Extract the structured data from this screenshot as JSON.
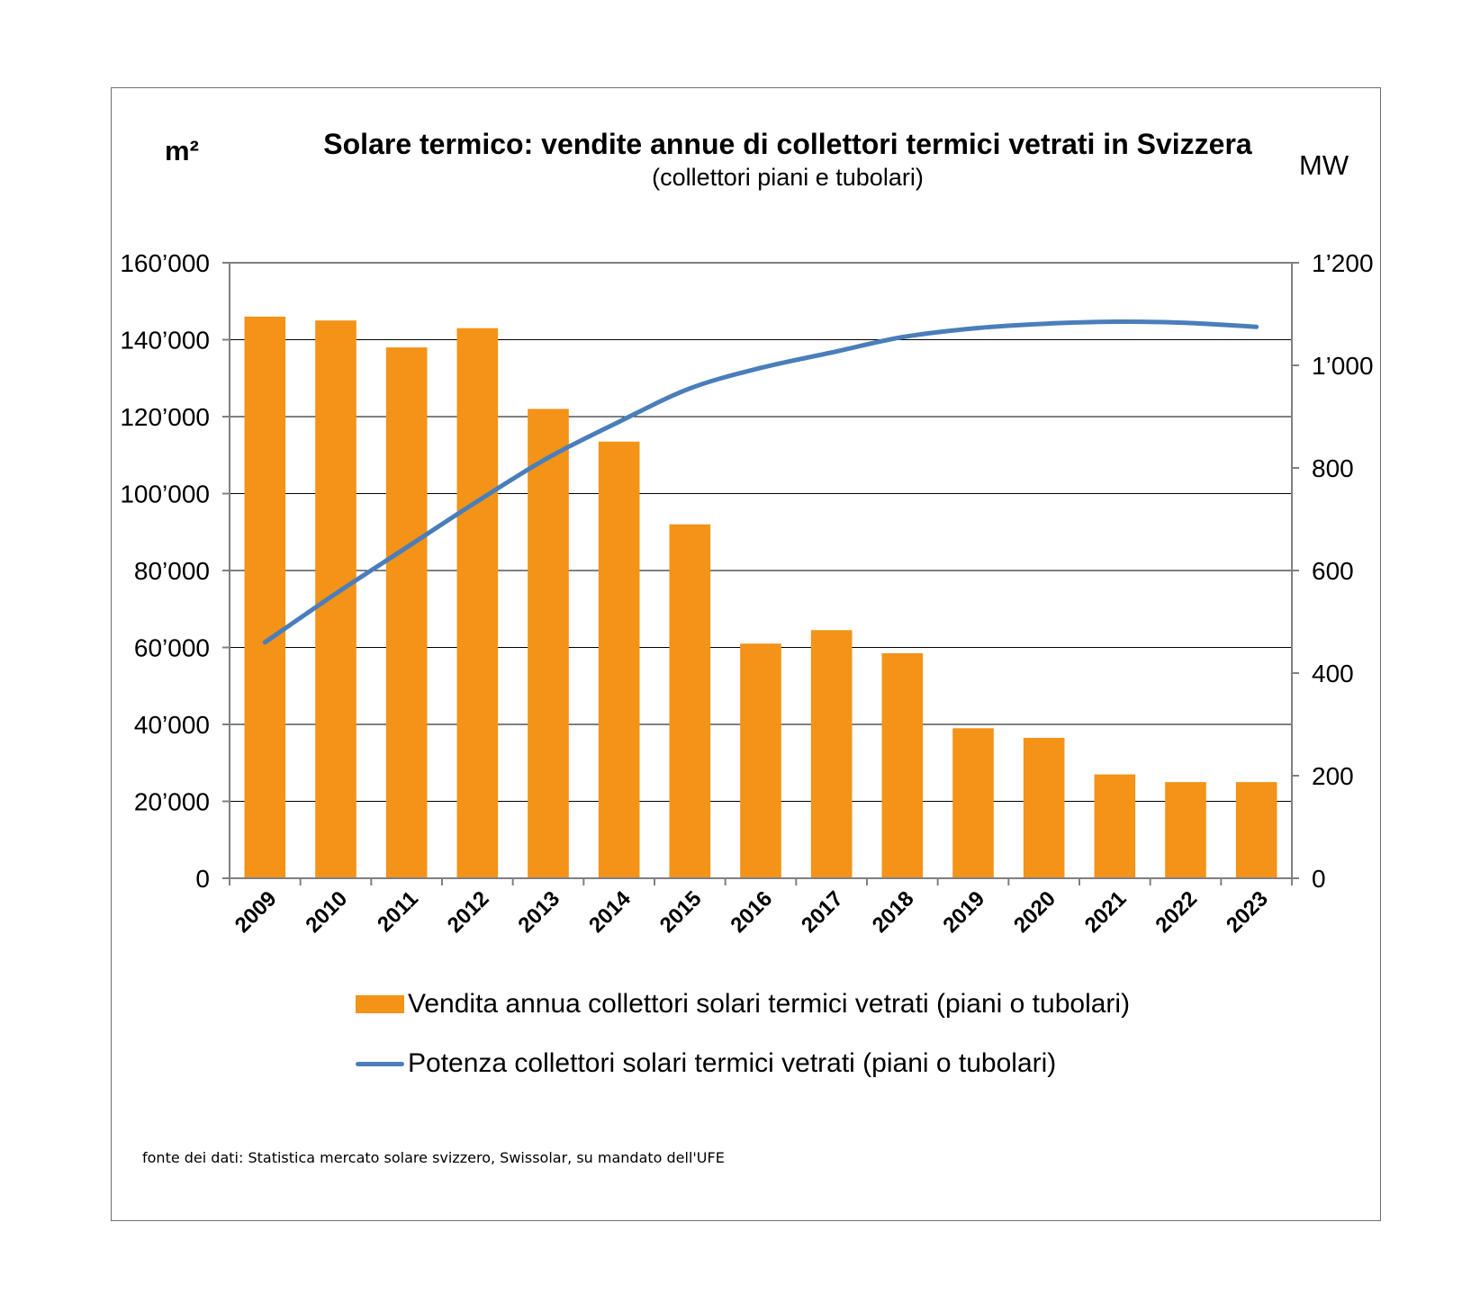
{
  "chart_data": {
    "type": "bar",
    "title": "Solare termico: vendite annue di collettori termici vetrati in Svizzera",
    "subtitle": "(collettori piani e tubolari)",
    "y_left_unit": "m²",
    "y_right_unit": "MW",
    "categories": [
      "2009",
      "2010",
      "2011",
      "2012",
      "2013",
      "2014",
      "2015",
      "2016",
      "2017",
      "2018",
      "2019",
      "2020",
      "2021",
      "2022",
      "2023"
    ],
    "series": [
      {
        "name": "Vendita annua collettori solari termici vetrati (piani o tubolari)",
        "type": "bar",
        "axis": "left",
        "color": "#f39318",
        "values": [
          146000,
          145000,
          138000,
          143000,
          122000,
          113500,
          92000,
          61000,
          64500,
          58500,
          39000,
          36500,
          27000,
          25000,
          25000
        ]
      },
      {
        "name": "Potenza collettori solari termici vetrati (piani o tubolari)",
        "type": "line",
        "axis": "right",
        "color": "#4a7ebb",
        "values": [
          460,
          555,
          645,
          735,
          820,
          890,
          955,
          995,
          1025,
          1055,
          1072,
          1081,
          1085,
          1083,
          1075
        ]
      }
    ],
    "y_left_ticks": [
      "0",
      "20’000",
      "40’000",
      "60’000",
      "80’000",
      "100’000",
      "120’000",
      "140’000",
      "160’000"
    ],
    "y_right_ticks": [
      "0",
      "200",
      "400",
      "600",
      "800",
      "1’000",
      "1’200"
    ],
    "y_left_lim": [
      0,
      160000
    ],
    "y_right_lim": [
      0,
      1200
    ],
    "grid": true,
    "legend_position": "bottom"
  },
  "source_note": "fonte dei dati: Statistica mercato solare svizzero, Swissolar, su mandato dell'UFE"
}
